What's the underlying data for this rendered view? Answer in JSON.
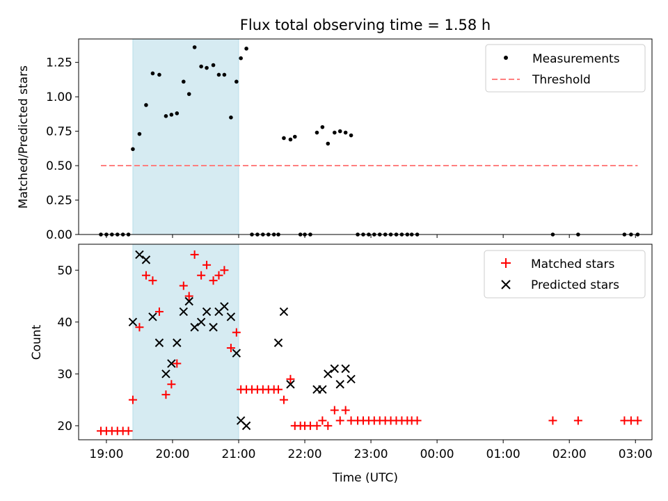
{
  "title": "Flux total observing time = 1.58 h",
  "xlabel": "Time (UTC)",
  "xticks": [
    "19:00",
    "20:00",
    "21:00",
    "22:00",
    "23:00",
    "00:00",
    "01:00",
    "02:00",
    "03:00"
  ],
  "colors": {
    "highlight": "#add8e6",
    "threshold": "#ff7f7f",
    "matched": "#ff0000",
    "predicted": "#000000",
    "measure": "#000000"
  },
  "chart_data": [
    {
      "type": "scatter",
      "ylabel": "Matched/Predicted stars",
      "ylim": [
        0,
        1.42
      ],
      "yticks": [
        "0.00",
        "0.25",
        "0.50",
        "0.75",
        "1.00",
        "1.25"
      ],
      "xlim_hours": [
        18.58,
        27.25
      ],
      "highlight_span": [
        "19:24",
        "21:00"
      ],
      "legend": "top-right",
      "series": [
        {
          "name": "Measurements",
          "marker": "dot",
          "x": [
            "18:55",
            "19:00",
            "19:05",
            "19:10",
            "19:15",
            "19:20",
            "19:24",
            "19:30",
            "19:36",
            "19:42",
            "19:48",
            "19:54",
            "19:59",
            "20:04",
            "20:10",
            "20:15",
            "20:20",
            "20:26",
            "20:31",
            "20:37",
            "20:42",
            "20:47",
            "20:53",
            "20:58",
            "21:02",
            "21:07",
            "21:12",
            "21:17",
            "21:22",
            "21:27",
            "21:32",
            "21:36",
            "21:41",
            "21:47",
            "21:51",
            "21:56",
            "22:00",
            "22:05",
            "22:11",
            "22:16",
            "22:21",
            "22:27",
            "22:32",
            "22:37",
            "22:42",
            "22:48",
            "22:53",
            "22:58",
            "23:03",
            "23:08",
            "23:13",
            "23:18",
            "23:23",
            "23:28",
            "23:33",
            "23:37",
            "23:42",
            "01:45",
            "02:08",
            "02:50",
            "02:56",
            "03:02"
          ],
          "y": [
            0,
            0,
            0,
            0,
            0,
            0,
            0.62,
            0.73,
            0.94,
            1.17,
            1.16,
            0.86,
            0.87,
            0.88,
            1.11,
            1.02,
            1.36,
            1.22,
            1.21,
            1.23,
            1.16,
            1.16,
            0.85,
            1.11,
            1.28,
            1.35,
            0,
            0,
            0,
            0,
            0,
            0,
            0.7,
            0.69,
            0.71,
            0,
            0,
            0,
            0.74,
            0.78,
            0.66,
            0.74,
            0.75,
            0.74,
            0.72,
            0,
            0,
            0,
            0,
            0,
            0,
            0,
            0,
            0,
            0,
            0,
            0,
            0,
            0,
            0,
            0,
            0
          ]
        },
        {
          "name": "Threshold",
          "line": "dashed",
          "x": [
            "18:55",
            "03:02"
          ],
          "y": [
            0.5,
            0.5
          ]
        }
      ]
    },
    {
      "type": "scatter",
      "ylabel": "Count",
      "ylim": [
        17.3,
        55.0
      ],
      "yticks": [
        "20",
        "30",
        "40",
        "50"
      ],
      "xlim_hours": [
        18.58,
        27.25
      ],
      "highlight_span": [
        "19:24",
        "21:00"
      ],
      "legend": "top-right",
      "series": [
        {
          "name": "Matched stars",
          "marker": "plus",
          "x": [
            "18:55",
            "19:00",
            "19:05",
            "19:10",
            "19:15",
            "19:20",
            "19:24",
            "19:30",
            "19:36",
            "19:42",
            "19:48",
            "19:54",
            "19:59",
            "20:04",
            "20:10",
            "20:15",
            "20:20",
            "20:26",
            "20:31",
            "20:37",
            "20:42",
            "20:47",
            "20:53",
            "20:58",
            "21:02",
            "21:07",
            "21:12",
            "21:17",
            "21:22",
            "21:27",
            "21:32",
            "21:36",
            "21:41",
            "21:47",
            "21:51",
            "21:56",
            "22:00",
            "22:05",
            "22:11",
            "22:16",
            "22:21",
            "22:27",
            "22:32",
            "22:37",
            "22:42",
            "22:48",
            "22:53",
            "22:58",
            "23:03",
            "23:08",
            "23:13",
            "23:18",
            "23:23",
            "23:28",
            "23:33",
            "23:37",
            "23:42",
            "01:45",
            "02:08",
            "02:50",
            "02:56",
            "03:02"
          ],
          "y": [
            19,
            19,
            19,
            19,
            19,
            19,
            25,
            39,
            49,
            48,
            42,
            26,
            28,
            32,
            47,
            45,
            53,
            49,
            51,
            48,
            49,
            50,
            35,
            38,
            27,
            27,
            27,
            27,
            27,
            27,
            27,
            27,
            25,
            29,
            20,
            20,
            20,
            20,
            20,
            21,
            20,
            23,
            21,
            23,
            21,
            21,
            21,
            21,
            21,
            21,
            21,
            21,
            21,
            21,
            21,
            21,
            21,
            21,
            21,
            21,
            21,
            21
          ]
        },
        {
          "name": "Predicted stars",
          "marker": "x",
          "x": [
            "19:24",
            "19:30",
            "19:36",
            "19:42",
            "19:48",
            "19:54",
            "19:59",
            "20:04",
            "20:10",
            "20:15",
            "20:20",
            "20:26",
            "20:31",
            "20:37",
            "20:42",
            "20:47",
            "20:53",
            "20:58",
            "21:02",
            "21:07",
            "21:36",
            "21:41",
            "21:47",
            "22:11",
            "22:16",
            "22:21",
            "22:27",
            "22:32",
            "22:37",
            "22:42"
          ],
          "y": [
            40,
            53,
            52,
            41,
            36,
            30,
            32,
            36,
            42,
            44,
            39,
            40,
            42,
            39,
            42,
            43,
            41,
            34,
            21,
            20,
            36,
            42,
            28,
            27,
            27,
            30,
            31,
            28,
            31,
            29
          ]
        }
      ]
    }
  ]
}
